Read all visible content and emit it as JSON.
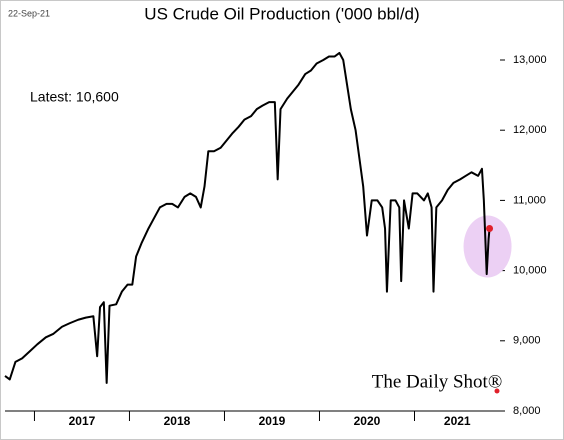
{
  "chart_data": {
    "type": "line",
    "title": "US Crude Oil Production ('000 bbl/d)",
    "date": "22-Sep-21",
    "annotation": "Latest:  10,600",
    "source": "The Daily Shot®",
    "color": "#000000",
    "highlight_color": "#e0202a",
    "highlight_fill": "#ecd0f4",
    "x": [
      2016.69,
      2016.74,
      2016.8,
      2016.87,
      2016.95,
      2017.03,
      2017.12,
      2017.2,
      2017.29,
      2017.37,
      2017.46,
      2017.54,
      2017.62,
      2017.66,
      2017.69,
      2017.73,
      2017.76,
      2017.79,
      2017.86,
      2017.92,
      2017.98,
      2018.03,
      2018.07,
      2018.13,
      2018.2,
      2018.26,
      2018.32,
      2018.39,
      2018.45,
      2018.51,
      2018.58,
      2018.64,
      2018.7,
      2018.75,
      2018.79,
      2018.83,
      2018.89,
      2018.96,
      2019.02,
      2019.08,
      2019.15,
      2019.21,
      2019.28,
      2019.34,
      2019.4,
      2019.47,
      2019.53,
      2019.56,
      2019.59,
      2019.66,
      2019.72,
      2019.78,
      2019.85,
      2019.91,
      2019.97,
      2020.04,
      2020.1,
      2020.16,
      2020.21,
      2020.25,
      2020.29,
      2020.33,
      2020.38,
      2020.42,
      2020.46,
      2020.5,
      2020.55,
      2020.61,
      2020.66,
      2020.69,
      2020.71,
      2020.75,
      2020.8,
      2020.84,
      2020.86,
      2020.89,
      2020.94,
      2020.98,
      2021.03,
      2021.1,
      2021.14,
      2021.18,
      2021.2,
      2021.23,
      2021.29,
      2021.35,
      2021.41,
      2021.48,
      2021.54,
      2021.6,
      2021.67,
      2021.71,
      2021.73,
      2021.75,
      2021.76,
      2021.78,
      2021.79
    ],
    "values": [
      8500,
      8450,
      8700,
      8750,
      8850,
      8950,
      9050,
      9100,
      9200,
      9250,
      9300,
      9330,
      9350,
      8780,
      9480,
      9550,
      8400,
      9500,
      9520,
      9700,
      9800,
      9800,
      10200,
      10400,
      10600,
      10750,
      10900,
      10950,
      10950,
      10900,
      11050,
      11100,
      11050,
      10900,
      11200,
      11700,
      11700,
      11750,
      11850,
      11950,
      12050,
      12150,
      12200,
      12300,
      12350,
      12400,
      12400,
      11300,
      12300,
      12450,
      12550,
      12650,
      12800,
      12850,
      12950,
      13000,
      13050,
      13050,
      13100,
      13000,
      12650,
      12300,
      12000,
      11600,
      11200,
      10500,
      11000,
      11000,
      10900,
      10600,
      9700,
      11000,
      11000,
      10900,
      9850,
      11000,
      10600,
      11100,
      11100,
      11000,
      11100,
      10900,
      9700,
      10900,
      11000,
      11150,
      11250,
      11300,
      11350,
      11400,
      11350,
      11450,
      11000,
      10300,
      9950,
      10450,
      10600
    ],
    "xlim": [
      2016.69,
      2021.9
    ],
    "xticks": [
      2017,
      2018,
      2019,
      2020,
      2021
    ],
    "ylim": [
      8000,
      13000
    ],
    "yticks": [
      {
        "value": 8000,
        "label": "8,000"
      },
      {
        "value": 9000,
        "label": "9,000"
      },
      {
        "value": 10000,
        "label": "10,000"
      },
      {
        "value": 11000,
        "label": "11,000"
      },
      {
        "value": 12000,
        "label": "12,000"
      },
      {
        "value": 13000,
        "label": "13,000"
      }
    ]
  }
}
